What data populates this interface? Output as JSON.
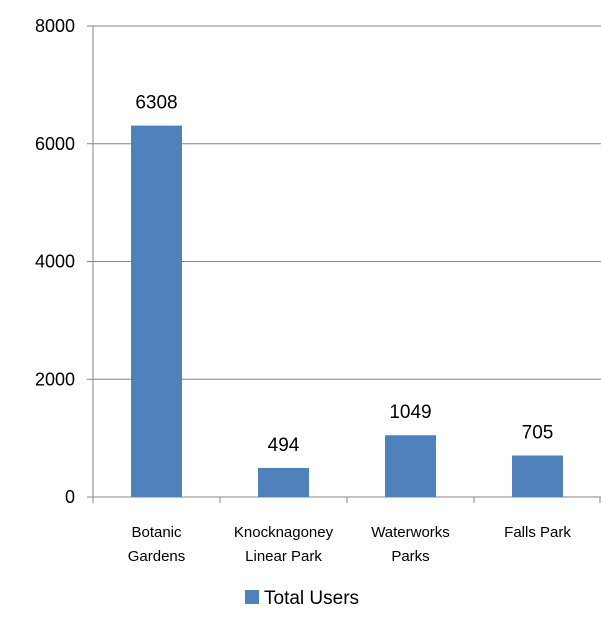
{
  "chart_data": {
    "type": "bar",
    "title": "",
    "xlabel": "",
    "ylabel": "",
    "categories": [
      [
        "Botanic",
        "Gardens"
      ],
      [
        "Knocknagoney",
        "Linear Park"
      ],
      [
        "Waterworks",
        "Parks"
      ],
      [
        "Falls Park"
      ]
    ],
    "series": [
      {
        "name": "Total Users",
        "values": [
          6308,
          494,
          1049,
          705
        ],
        "color": "#4f81bd"
      }
    ],
    "ylim": [
      0,
      8000
    ],
    "yticks": [
      0,
      2000,
      4000,
      6000,
      8000
    ],
    "grid": true,
    "data_labels": true,
    "legend": "bottom"
  }
}
